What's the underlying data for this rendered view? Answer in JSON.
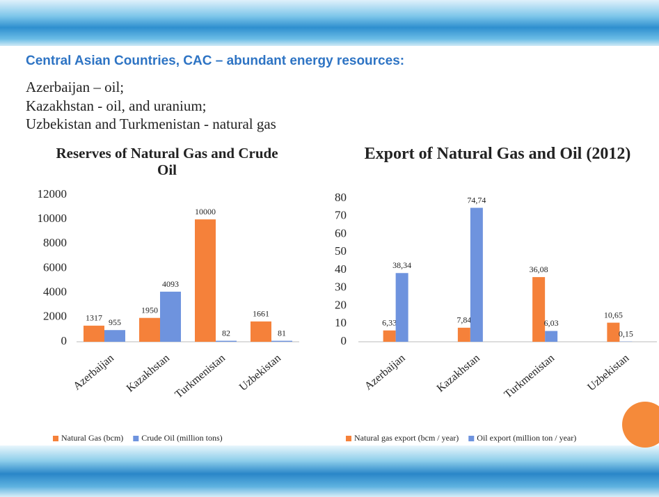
{
  "heading": "Central Asian Countries, CAC – abundant energy resources:",
  "lines": [
    "Azerbaijan – oil;",
    "Kazakhstan - oil, and uranium;",
    "Uzbekistan and Turkmenistan - natural gas"
  ],
  "chart_data": [
    {
      "type": "bar",
      "title": "Reserves of Natural Gas and Crude Oil",
      "categories": [
        "Azerbaijan",
        "Kazakhstan",
        "Turkmenistan",
        "Uzbekistan"
      ],
      "series": [
        {
          "name": "Natural Gas (bcm)",
          "color": "#f5813a",
          "values": [
            1317,
            1950,
            10000,
            1661
          ]
        },
        {
          "name": "Crude Oil (million tons)",
          "color": "#6e93de",
          "values": [
            955,
            4093,
            82,
            81
          ]
        }
      ],
      "ylim": [
        0,
        12000
      ],
      "yticks": [
        0,
        2000,
        4000,
        6000,
        8000,
        10000,
        12000
      ],
      "grid": false,
      "legend": "bottom"
    },
    {
      "type": "bar",
      "title": "Export of Natural Gas and Oil (2012)",
      "categories": [
        "Azerbaijan",
        "Kazakhstan",
        "Turkmenistan",
        "Uzbekistan"
      ],
      "series": [
        {
          "name": "Natural gas export (bcm / year)",
          "color": "#f5813a",
          "values": [
            6.33,
            7.84,
            36.08,
            10.65
          ],
          "value_labels": [
            "6,33",
            "7,84",
            "36,08",
            "10,65"
          ]
        },
        {
          "name": "Oil export (million ton / year)",
          "color": "#6e93de",
          "values": [
            38.34,
            74.74,
            6.03,
            0.15
          ],
          "value_labels": [
            "38,34",
            "74,74",
            "6,03",
            "0,15"
          ]
        }
      ],
      "ylim": [
        0,
        80
      ],
      "yticks": [
        0,
        10,
        20,
        30,
        40,
        50,
        60,
        70,
        80
      ],
      "grid": false,
      "legend": "bottom"
    }
  ]
}
